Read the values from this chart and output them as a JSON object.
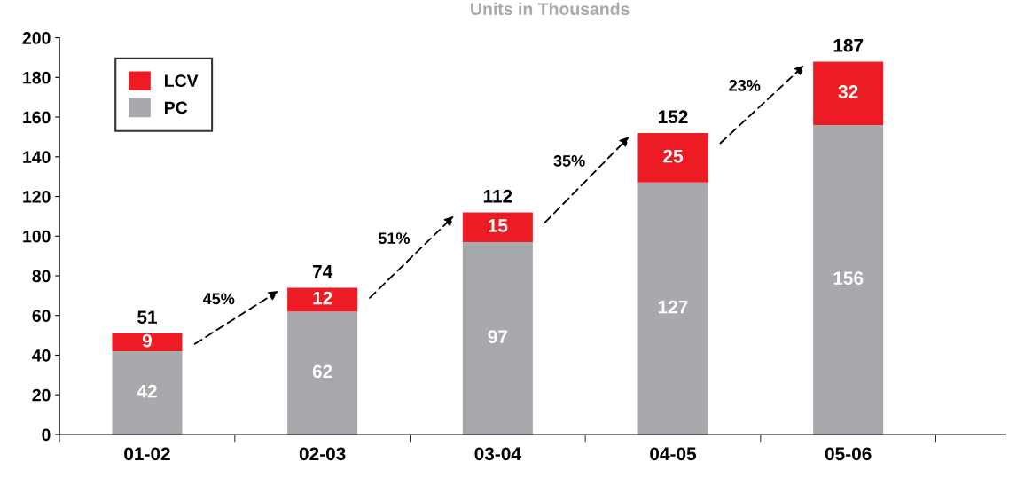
{
  "chart_data": {
    "type": "bar",
    "subtitle": "Units in Thousands",
    "stacked": true,
    "categories": [
      "01-02",
      "02-03",
      "03-04",
      "04-05",
      "05-06"
    ],
    "series": [
      {
        "name": "PC",
        "color": "#a7a9ac",
        "values": [
          42,
          62,
          97,
          127,
          156
        ]
      },
      {
        "name": "LCV",
        "color": "#ed1c24",
        "values": [
          9,
          12,
          15,
          25,
          32
        ]
      }
    ],
    "data_labels": true,
    "totals": [
      "51",
      "74",
      "112",
      "152",
      "187"
    ],
    "annotations": [
      "45%",
      "51%",
      "35%",
      "23%"
    ],
    "ylim": [
      0,
      200
    ],
    "yticks": [
      0,
      20,
      40,
      60,
      80,
      100,
      120,
      140,
      160,
      180,
      200
    ],
    "grid": false,
    "legend": "top left"
  }
}
